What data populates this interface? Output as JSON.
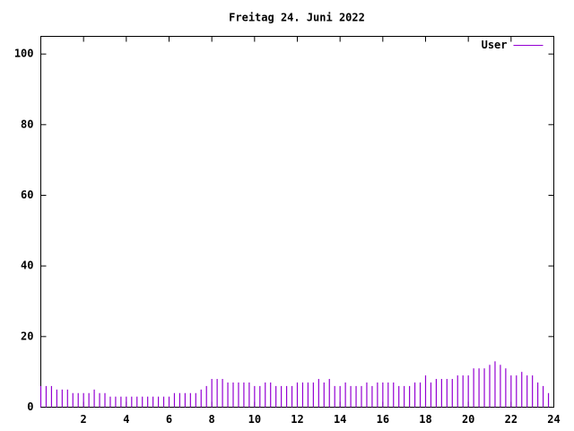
{
  "chart_data": {
    "type": "impulse",
    "title": "Freitag 24. Juni 2022",
    "x": [
      0,
      0.25,
      0.5,
      0.75,
      1,
      1.25,
      1.5,
      1.75,
      2,
      2.25,
      2.5,
      2.75,
      3,
      3.25,
      3.5,
      3.75,
      4,
      4.25,
      4.5,
      4.75,
      5,
      5.25,
      5.5,
      5.75,
      6,
      6.25,
      6.5,
      6.75,
      7,
      7.25,
      7.5,
      7.75,
      8,
      8.25,
      8.5,
      8.75,
      9,
      9.25,
      9.5,
      9.75,
      10,
      10.25,
      10.5,
      10.75,
      11,
      11.25,
      11.5,
      11.75,
      12,
      12.25,
      12.5,
      12.75,
      13,
      13.25,
      13.5,
      13.75,
      14,
      14.25,
      14.5,
      14.75,
      15,
      15.25,
      15.5,
      15.75,
      16,
      16.25,
      16.5,
      16.75,
      17,
      17.25,
      17.5,
      17.75,
      18,
      18.25,
      18.5,
      18.75,
      19,
      19.25,
      19.5,
      19.75,
      20,
      20.25,
      20.5,
      20.75,
      21,
      21.25,
      21.5,
      21.75,
      22,
      22.25,
      22.5,
      22.75,
      23,
      23.25,
      23.5,
      23.75
    ],
    "series": [
      {
        "name": "User",
        "color": "#9400d3",
        "values": [
          6,
          6,
          6,
          5,
          5,
          5,
          4,
          4,
          4,
          4,
          5,
          4,
          4,
          3,
          3,
          3,
          3,
          3,
          3,
          3,
          3,
          3,
          3,
          3,
          3,
          4,
          4,
          4,
          4,
          4,
          5,
          6,
          8,
          8,
          8,
          7,
          7,
          7,
          7,
          7,
          6,
          6,
          7,
          7,
          6,
          6,
          6,
          6,
          7,
          7,
          7,
          7,
          8,
          7,
          8,
          6,
          6,
          7,
          6,
          6,
          6,
          7,
          6,
          7,
          7,
          7,
          7,
          6,
          6,
          6,
          7,
          7,
          9,
          7,
          8,
          8,
          8,
          8,
          9,
          9,
          9,
          11,
          11,
          11,
          12,
          13,
          12,
          11,
          9,
          9,
          10,
          9,
          9,
          7,
          6,
          4
        ]
      }
    ],
    "xlim": [
      0,
      24
    ],
    "xticks": [
      2,
      4,
      6,
      8,
      10,
      12,
      14,
      16,
      18,
      20,
      22,
      24
    ],
    "ylim": [
      0,
      105
    ],
    "yticks": [
      0,
      20,
      40,
      60,
      80,
      100
    ],
    "grid": false,
    "legend": "top-right"
  }
}
